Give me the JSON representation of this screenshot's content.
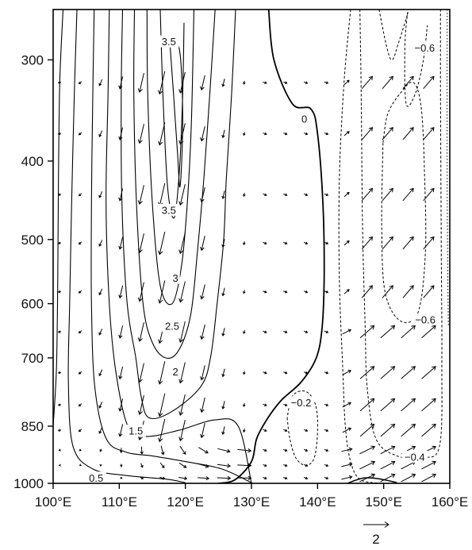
{
  "chart_data": {
    "type": "contour+vector",
    "title": "",
    "xlabel": "",
    "ylabel": "",
    "x_axis": {
      "ticks": [
        100,
        110,
        120,
        130,
        140,
        150,
        160
      ],
      "tick_labels": [
        "100°E",
        "110°E",
        "120°E",
        "130°E",
        "140°E",
        "150°E",
        "160°E"
      ],
      "range": [
        100,
        160
      ]
    },
    "y_axis": {
      "scale": "log",
      "inverted": true,
      "ticks": [
        300,
        400,
        500,
        600,
        700,
        850,
        1000
      ],
      "tick_labels": [
        "300",
        "400",
        "500",
        "600",
        "700",
        "850",
        "1000"
      ],
      "range": [
        260,
        1000
      ]
    },
    "contour_levels": {
      "solid_positive": [
        0.5,
        1,
        1.5,
        2,
        2.5,
        3,
        3.5
      ],
      "zero_line": 0,
      "dashed_negative": [
        -0.2,
        -0.4,
        -0.6
      ]
    },
    "contour_labels": [
      {
        "text": "3.5",
        "lon": 117.5,
        "p": 285
      },
      {
        "text": "3.5",
        "lon": 117.5,
        "p": 460
      },
      {
        "text": "3",
        "lon": 118.5,
        "p": 558
      },
      {
        "text": "2.5",
        "lon": 118,
        "p": 640
      },
      {
        "text": "2",
        "lon": 118.5,
        "p": 728
      },
      {
        "text": "1.5",
        "lon": 112.5,
        "p": 862
      },
      {
        "text": "0.5",
        "lon": 106.5,
        "p": 985
      },
      {
        "text": "0",
        "lon": 138,
        "p": 355
      },
      {
        "text": "−0.2",
        "lon": 137.5,
        "p": 795
      },
      {
        "text": "−0.6",
        "lon": 156.2,
        "p": 290
      },
      {
        "text": "−0.6",
        "lon": 156.3,
        "p": 628
      },
      {
        "text": "−0.4",
        "lon": 154.7,
        "p": 928
      }
    ],
    "vector_reference": {
      "magnitude": 2,
      "label": "2"
    }
  }
}
